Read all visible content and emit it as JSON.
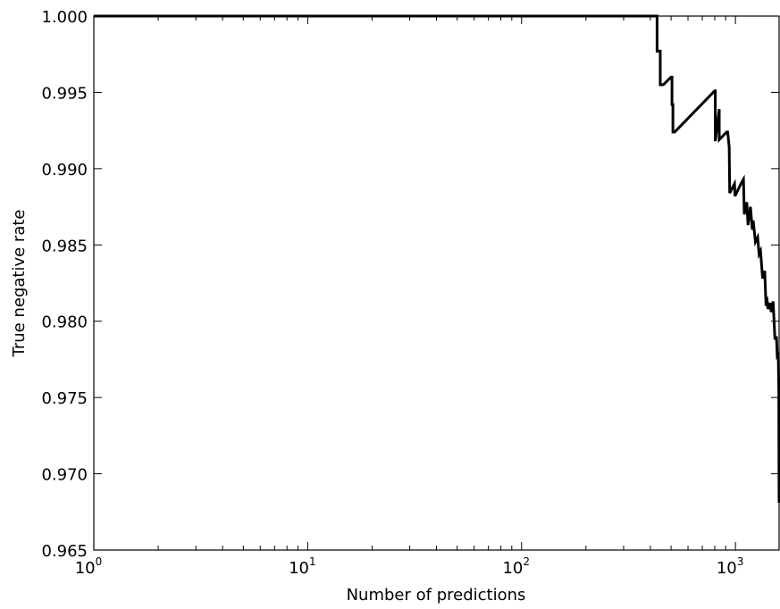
{
  "chart_data": {
    "type": "line",
    "title": "",
    "xlabel": "Number of predictions",
    "ylabel": "True negative rate",
    "xscale": "log",
    "xlim": [
      1,
      1600
    ],
    "ylim": [
      0.965,
      1.0
    ],
    "grid": false,
    "legend": "none",
    "line_color": "#000000",
    "x_ticks": [
      {
        "value": 1,
        "base": "10",
        "exp": "0"
      },
      {
        "value": 10,
        "base": "10",
        "exp": "1"
      },
      {
        "value": 100,
        "base": "10",
        "exp": "2"
      },
      {
        "value": 1000,
        "base": "10",
        "exp": "3"
      }
    ],
    "y_ticks": [
      {
        "value": 0.965,
        "label": "0.965"
      },
      {
        "value": 0.97,
        "label": "0.970"
      },
      {
        "value": 0.975,
        "label": "0.975"
      },
      {
        "value": 0.98,
        "label": "0.980"
      },
      {
        "value": 0.985,
        "label": "0.985"
      },
      {
        "value": 0.99,
        "label": "0.990"
      },
      {
        "value": 0.995,
        "label": "0.995"
      },
      {
        "value": 1.0,
        "label": "1.000"
      }
    ],
    "series": [
      {
        "x": [
          1,
          430,
          430,
          445,
          445,
          460,
          500,
          505,
          505,
          510,
          510,
          520,
          800,
          805,
          805,
          840,
          840,
          910,
          920,
          935,
          940,
          990,
          995,
          1060,
          1090,
          1100,
          1130,
          1145,
          1175,
          1200,
          1210,
          1240,
          1270,
          1290,
          1310,
          1340,
          1370,
          1390,
          1400,
          1420,
          1450,
          1470,
          1500,
          1530,
          1555,
          1570,
          1585,
          1595,
          1598,
          1600
        ],
        "y": [
          1.0,
          1.0,
          0.9977,
          0.9977,
          0.9955,
          0.9955,
          0.996,
          0.996,
          0.9942,
          0.9942,
          0.9924,
          0.9924,
          0.9951,
          0.9951,
          0.9918,
          0.9939,
          0.9919,
          0.9924,
          0.9924,
          0.9914,
          0.9884,
          0.989,
          0.9882,
          0.989,
          0.9893,
          0.987,
          0.9878,
          0.9863,
          0.9875,
          0.986,
          0.9866,
          0.9852,
          0.9855,
          0.9844,
          0.9846,
          0.9828,
          0.9833,
          0.981,
          0.9816,
          0.9808,
          0.9812,
          0.9806,
          0.9813,
          0.9788,
          0.979,
          0.9775,
          0.978,
          0.9755,
          0.97,
          0.9681
        ]
      }
    ]
  }
}
